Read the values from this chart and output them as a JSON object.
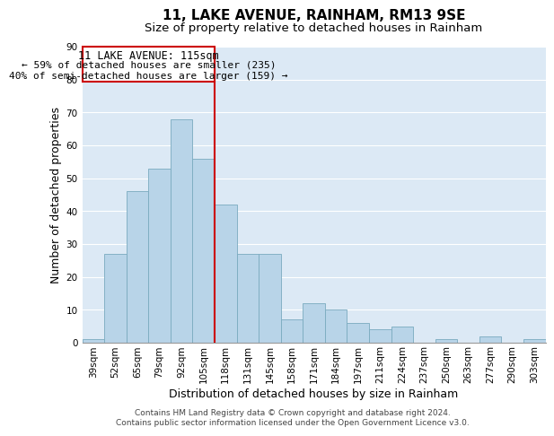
{
  "title": "11, LAKE AVENUE, RAINHAM, RM13 9SE",
  "subtitle": "Size of property relative to detached houses in Rainham",
  "xlabel": "Distribution of detached houses by size in Rainham",
  "ylabel": "Number of detached properties",
  "bar_labels": [
    "39sqm",
    "52sqm",
    "65sqm",
    "79sqm",
    "92sqm",
    "105sqm",
    "118sqm",
    "131sqm",
    "145sqm",
    "158sqm",
    "171sqm",
    "184sqm",
    "197sqm",
    "211sqm",
    "224sqm",
    "237sqm",
    "250sqm",
    "263sqm",
    "277sqm",
    "290sqm",
    "303sqm"
  ],
  "bar_values": [
    1,
    27,
    46,
    53,
    68,
    56,
    42,
    27,
    27,
    7,
    12,
    10,
    6,
    4,
    5,
    0,
    1,
    0,
    2,
    0,
    1
  ],
  "bar_color": "#b8d4e8",
  "bar_edge_color": "#7aaabf",
  "vline_bar_index": 6,
  "highlight_line_label": "11 LAKE AVENUE: 115sqm",
  "annotation_line1": "← 59% of detached houses are smaller (235)",
  "annotation_line2": "40% of semi-detached houses are larger (159) →",
  "box_edge_color": "#cc0000",
  "vline_color": "#cc0000",
  "ylim": [
    0,
    90
  ],
  "yticks": [
    0,
    10,
    20,
    30,
    40,
    50,
    60,
    70,
    80,
    90
  ],
  "footer_line1": "Contains HM Land Registry data © Crown copyright and database right 2024.",
  "footer_line2": "Contains public sector information licensed under the Open Government Licence v3.0.",
  "title_fontsize": 11,
  "subtitle_fontsize": 9.5,
  "axis_label_fontsize": 9,
  "tick_fontsize": 7.5,
  "annotation_fontsize": 8.5,
  "footer_fontsize": 6.5
}
